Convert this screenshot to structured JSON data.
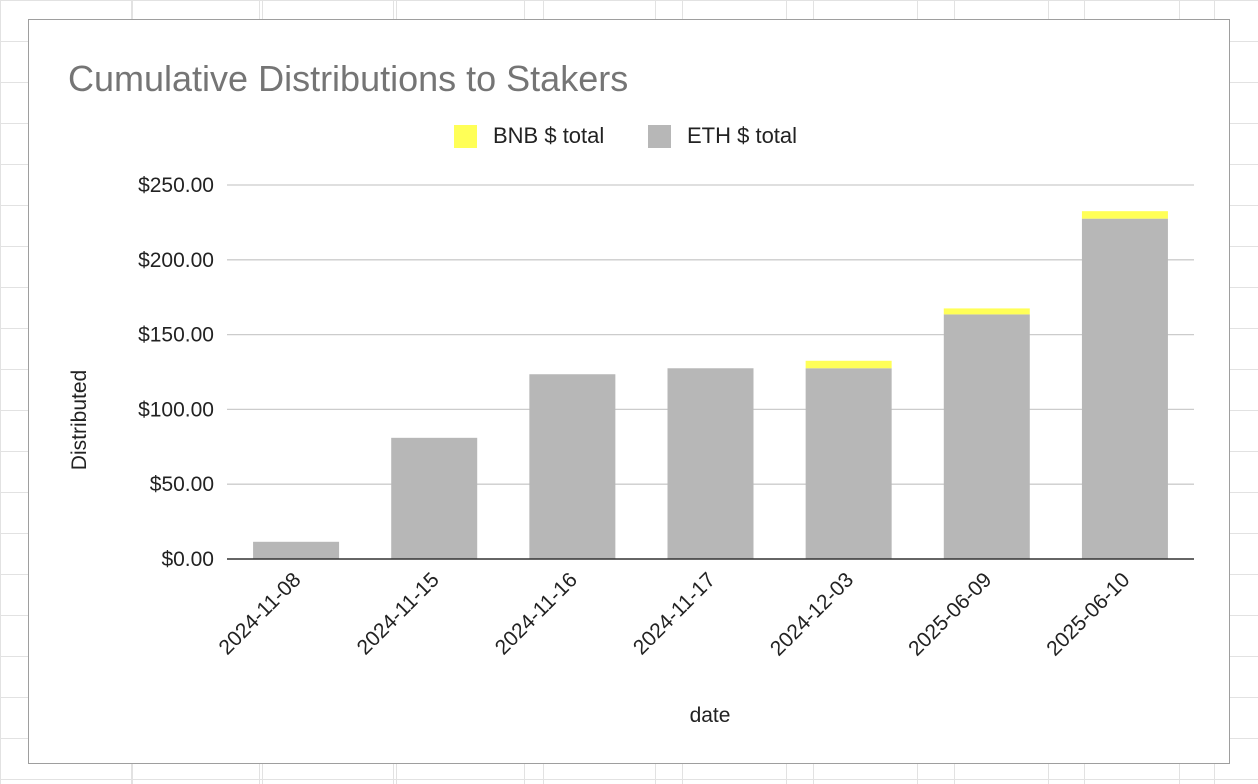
{
  "chart_data": {
    "type": "bar",
    "stacked": true,
    "title": "Cumulative Distributions to Stakers",
    "xlabel": "date",
    "ylabel": "Distributed",
    "categories": [
      "2024-11-08",
      "2024-11-15",
      "2024-11-16",
      "2024-11-17",
      "2024-12-03",
      "2025-06-09",
      "2025-06-10"
    ],
    "series": [
      {
        "name": "ETH $ total",
        "color": "#b7b7b7",
        "values": [
          11.5,
          81,
          123.5,
          127.5,
          127.5,
          163.5,
          227.5
        ]
      },
      {
        "name": "BNB $ total",
        "color": "#ffff57",
        "values": [
          0,
          0,
          0,
          0,
          5,
          4,
          5
        ]
      }
    ],
    "legend_order": [
      "BNB $ total",
      "ETH $ total"
    ],
    "legend_position": "top",
    "ylim": [
      0,
      250
    ],
    "yticks": [
      0,
      50,
      100,
      150,
      200,
      250
    ],
    "ytick_labels": [
      "$0.00",
      "$50.00",
      "$100.00",
      "$150.00",
      "$200.00",
      "$250.00"
    ],
    "grid": true
  }
}
